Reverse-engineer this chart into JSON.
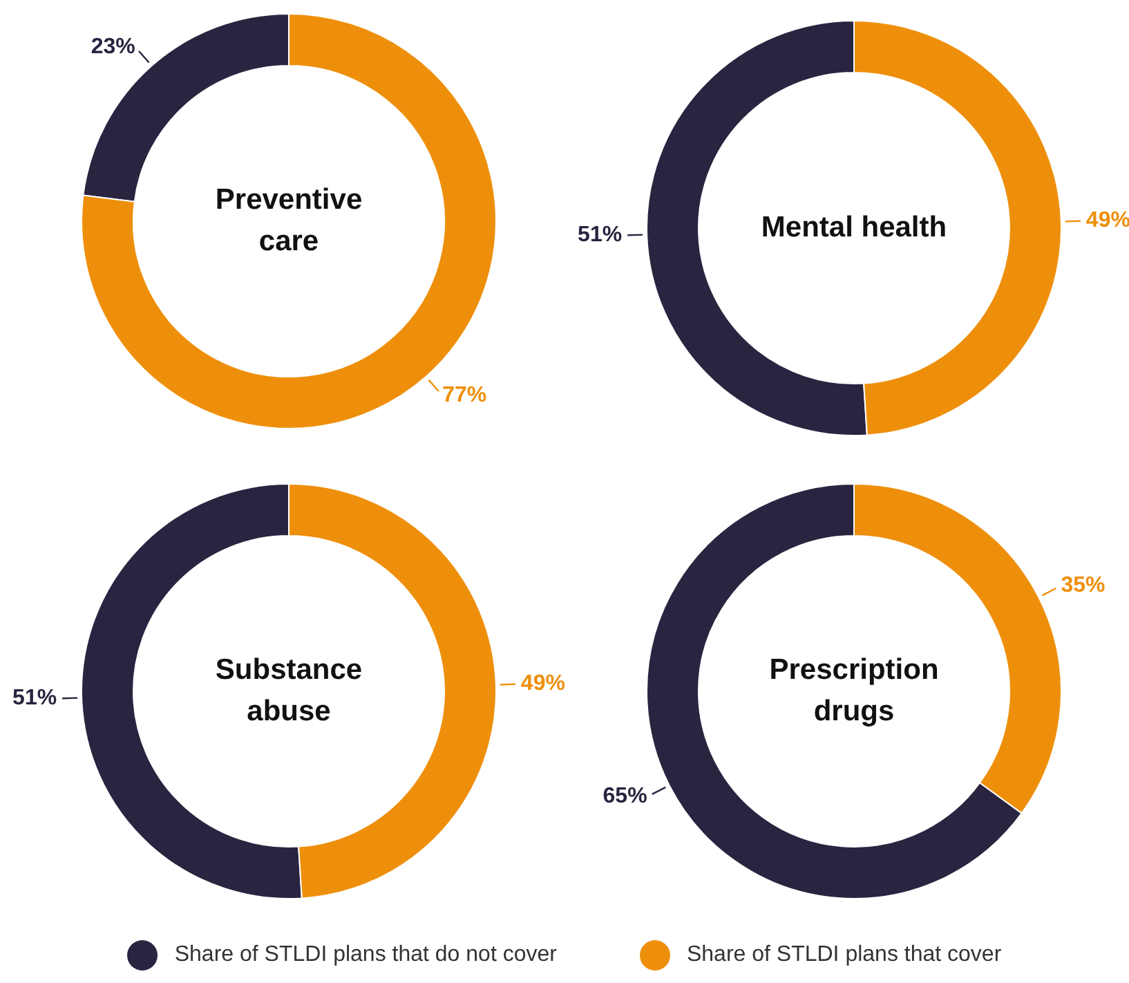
{
  "chart_data": [
    {
      "type": "donut",
      "title": "Preventive care",
      "categories": [
        "Share of STLDI plans that do not cover",
        "Share of STLDI plans that cover"
      ],
      "values": [
        23,
        77
      ],
      "colors": [
        "#2a2440",
        "#ee8f0b"
      ],
      "value_labels": [
        "23%",
        "77%"
      ],
      "legend": "bottom"
    },
    {
      "type": "donut",
      "title": "Mental health",
      "categories": [
        null,
        null
      ],
      "values": [
        51,
        49
      ],
      "colors": [
        "#2a2440",
        "#ee8f0b"
      ],
      "value_labels": [
        "51%",
        "49%"
      ]
    },
    {
      "type": "donut",
      "title": "Substance abuse",
      "categories": [
        null,
        null
      ],
      "values": [
        51,
        49
      ],
      "colors": [
        "#2a2440",
        "#ee8f0b"
      ],
      "value_labels": [
        "51%",
        "49%"
      ]
    },
    {
      "type": "donut",
      "title": "Prescription drugs",
      "categories": [
        null,
        null
      ],
      "values": [
        65,
        35
      ],
      "colors": [
        "#2a2440",
        "#ee8f0b"
      ],
      "value_labels": [
        "65%",
        "35%"
      ]
    }
  ]
}
